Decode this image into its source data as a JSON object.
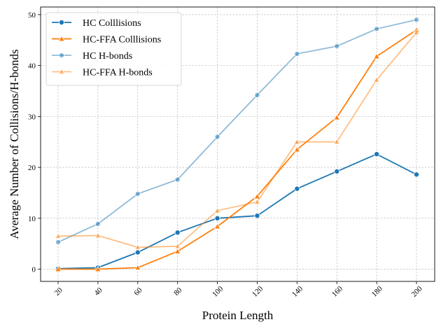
{
  "chart_data": {
    "type": "line",
    "xlabel": "Protein Length",
    "ylabel": "Average Number of Collisions/H-bonds",
    "x": [
      20,
      40,
      60,
      80,
      100,
      120,
      140,
      160,
      180,
      200
    ],
    "xticks": [
      "20",
      "40",
      "60",
      "80",
      "100",
      "120",
      "140",
      "160",
      "180",
      "200"
    ],
    "yticks": [
      "0",
      "10",
      "20",
      "30",
      "40",
      "50"
    ],
    "ylim": [
      -2.4,
      51.5
    ],
    "grid": true,
    "legend_position": "top-left",
    "series": [
      {
        "name": "HC Colllisions",
        "marker": "circle",
        "color": "#1f77b4",
        "opacity": 1.0,
        "values": [
          0.1,
          0.3,
          3.3,
          7.2,
          10.0,
          10.5,
          15.8,
          19.2,
          22.6,
          18.6
        ]
      },
      {
        "name": "HC-FFA Colllisions",
        "marker": "triangle",
        "color": "#ff7f0e",
        "opacity": 1.0,
        "values": [
          0.0,
          0.0,
          0.3,
          3.5,
          8.4,
          14.3,
          23.5,
          29.8,
          41.8,
          47.0
        ]
      },
      {
        "name": "HC H-bonds",
        "marker": "circle",
        "color": "#1f77b4",
        "opacity": 0.5,
        "values": [
          5.3,
          8.9,
          14.8,
          17.6,
          26.0,
          34.2,
          42.3,
          43.8,
          47.2,
          49.0
        ]
      },
      {
        "name": "HC-FFA H-bonds",
        "marker": "triangle",
        "color": "#ff7f0e",
        "opacity": 0.5,
        "values": [
          6.5,
          6.6,
          4.3,
          4.5,
          11.5,
          13.2,
          25.0,
          25.0,
          37.2,
          46.5
        ]
      }
    ]
  }
}
